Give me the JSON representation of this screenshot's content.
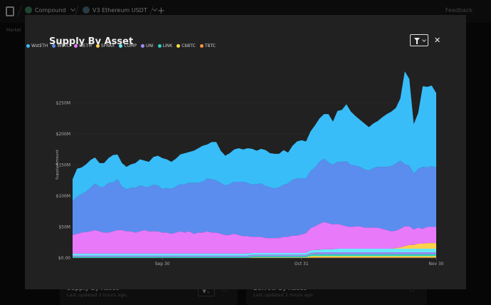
{
  "topbar": {
    "crumbs": [
      "Compound",
      "V3 Ethereum USDT"
    ],
    "add": "+",
    "feedback": "Feedback",
    "subnav": "Market"
  },
  "behind": [
    {
      "title": "Supply By Asset",
      "subtitle": "Last updated 2 hours ago."
    },
    {
      "title": "Borrow By Asset",
      "subtitle": "Last updated 2 hours ago."
    }
  ],
  "modal": {
    "title": "Supply By Asset",
    "close": "✕"
  },
  "chart_data": {
    "type": "area",
    "stacked": true,
    "title": "Supply By Asset",
    "ylabel": "Supply Amount",
    "xlabel": "",
    "ylim": [
      0,
      300000000
    ],
    "yticks": [
      "$0.00",
      "$50M",
      "$100M",
      "$150M",
      "$200M",
      "$250M"
    ],
    "ytick_values": [
      0,
      50000000,
      100000000,
      150000000,
      200000000,
      250000000
    ],
    "xticks": [
      {
        "label": "Sep 30",
        "index": 20
      },
      {
        "label": "Oct 31",
        "index": 51
      },
      {
        "label": "Nov 30",
        "index": 81
      }
    ],
    "x_count": 82,
    "legend": [
      "WstETH",
      "WBTC",
      "WETH",
      "SFRAX",
      "COMP",
      "UNI",
      "LINK",
      "CbBTC",
      "TBTC"
    ],
    "colors": [
      "#38bdf8",
      "#5b8def",
      "#e879f9",
      "#fcd34d",
      "#67e8f9",
      "#a78bfa",
      "#2dd4bf",
      "#fde047",
      "#fb923c"
    ],
    "series": [
      {
        "name": "WstETH",
        "values": [
          35,
          45,
          43,
          44,
          45,
          42,
          38,
          38,
          40,
          45,
          40,
          38,
          36,
          38,
          40,
          42,
          42,
          40,
          45,
          48,
          50,
          46,
          44,
          45,
          48,
          50,
          50,
          52,
          56,
          58,
          55,
          60,
          62,
          52,
          48,
          50,
          52,
          54,
          52,
          56,
          58,
          54,
          56,
          58,
          55,
          56,
          54,
          56,
          50,
          55,
          60,
          62,
          60,
          64,
          68,
          70,
          72,
          78,
          70,
          82,
          84,
          92,
          86,
          80,
          76,
          74,
          70,
          72,
          74,
          80,
          85,
          88,
          90,
          100,
          150,
          140,
          80,
          90,
          130,
          130,
          130,
          120
        ]
      },
      {
        "name": "WBTC",
        "values": [
          55,
          60,
          62,
          65,
          70,
          75,
          72,
          74,
          80,
          78,
          82,
          70,
          68,
          70,
          72,
          74,
          70,
          72,
          75,
          74,
          70,
          72,
          72,
          74,
          76,
          78,
          78,
          82,
          80,
          82,
          85,
          86,
          84,
          82,
          80,
          82,
          84,
          86,
          88,
          86,
          84,
          85,
          86,
          84,
          82,
          80,
          82,
          84,
          86,
          90,
          92,
          90,
          88,
          92,
          95,
          100,
          102,
          98,
          96,
          100,
          102,
          105,
          100,
          98,
          96,
          94,
          92,
          96,
          98,
          100,
          102,
          105,
          108,
          110,
          100,
          98,
          90,
          95,
          100,
          96,
          98,
          96
        ]
      },
      {
        "name": "WETH",
        "values": [
          30,
          32,
          34,
          35,
          36,
          38,
          36,
          34,
          34,
          36,
          38,
          38,
          36,
          36,
          34,
          36,
          38,
          36,
          36,
          36,
          34,
          34,
          32,
          34,
          36,
          34,
          36,
          32,
          34,
          34,
          36,
          34,
          34,
          32,
          30,
          30,
          32,
          30,
          28,
          28,
          26,
          26,
          26,
          24,
          24,
          24,
          24,
          26,
          26,
          28,
          28,
          30,
          32,
          36,
          38,
          42,
          44,
          42,
          40,
          40,
          38,
          36,
          35,
          36,
          36,
          34,
          34,
          34,
          34,
          32,
          30,
          28,
          28,
          30,
          32,
          30,
          25,
          26,
          24,
          26,
          26,
          26
        ]
      },
      {
        "name": "SFRAX",
        "values": [
          0,
          0,
          0,
          0,
          0,
          0,
          0,
          0,
          0,
          0,
          0,
          0,
          0,
          0,
          0,
          0,
          0,
          0,
          0,
          0,
          0,
          0,
          0,
          0,
          0,
          0,
          0,
          0,
          0,
          0,
          0,
          0,
          0,
          0,
          0,
          0,
          0,
          0,
          0,
          0,
          0,
          0,
          0,
          0,
          0,
          0,
          0,
          0,
          0,
          0,
          0,
          0,
          0,
          0,
          0,
          0,
          0,
          0,
          0,
          0,
          0,
          0,
          0,
          0,
          0,
          0,
          0,
          0,
          0,
          0,
          0,
          0,
          1,
          2,
          4,
          6,
          6,
          8,
          8,
          9,
          9,
          9
        ]
      },
      {
        "name": "COMP",
        "values": [
          3,
          3,
          3,
          3,
          3,
          3,
          3,
          3,
          3,
          3,
          3,
          3,
          3,
          3,
          3,
          3,
          3,
          3,
          3,
          3,
          3,
          3,
          3,
          3,
          3,
          3,
          3,
          3,
          3,
          3,
          3,
          3,
          3,
          3,
          3,
          3,
          3,
          3,
          3,
          3,
          3,
          3,
          3,
          3,
          3,
          3,
          3,
          3,
          3,
          3,
          3,
          3,
          3,
          4,
          4,
          4,
          5,
          5,
          5,
          6,
          6,
          6,
          6,
          6,
          6,
          6,
          6,
          6,
          6,
          6,
          6,
          6,
          6,
          6,
          6,
          6,
          6,
          6,
          6,
          6,
          6,
          6
        ]
      },
      {
        "name": "UNI",
        "values": [
          2,
          2,
          2,
          2,
          2,
          2,
          2,
          2,
          2,
          2,
          2,
          2,
          2,
          2,
          2,
          2,
          2,
          2,
          2,
          2,
          2,
          2,
          2,
          2,
          2,
          2,
          2,
          2,
          2,
          2,
          2,
          2,
          2,
          2,
          2,
          2,
          2,
          2,
          2,
          2,
          2,
          2,
          2,
          2,
          2,
          2,
          2,
          2,
          2,
          2,
          2,
          2,
          2,
          2,
          3,
          3,
          3,
          3,
          3,
          3,
          3,
          3,
          3,
          3,
          3,
          3,
          3,
          3,
          3,
          3,
          3,
          3,
          3,
          3,
          3,
          3,
          3,
          3,
          3,
          3,
          3,
          3
        ]
      },
      {
        "name": "LINK",
        "values": [
          2,
          2,
          2,
          2,
          2,
          2,
          2,
          2,
          2,
          2,
          2,
          2,
          2,
          2,
          2,
          2,
          2,
          2,
          2,
          2,
          2,
          2,
          2,
          2,
          2,
          2,
          2,
          2,
          2,
          2,
          2,
          2,
          2,
          2,
          2,
          2,
          2,
          2,
          2,
          2,
          2,
          2,
          2,
          2,
          2,
          2,
          2,
          2,
          2,
          2,
          2,
          2,
          2,
          3,
          3,
          3,
          3,
          3,
          3,
          3,
          3,
          3,
          3,
          3,
          3,
          3,
          3,
          3,
          3,
          3,
          3,
          3,
          3,
          3,
          3,
          3,
          3,
          3,
          3,
          3,
          3,
          3
        ]
      },
      {
        "name": "CbBTC",
        "values": [
          0,
          0,
          0,
          0,
          0,
          0,
          0,
          0,
          0,
          0,
          0,
          0,
          0,
          0,
          0,
          0,
          0,
          0,
          0,
          0,
          0,
          0,
          0,
          0,
          0,
          0,
          0,
          0,
          0,
          0,
          0,
          0,
          0,
          0,
          0,
          0,
          0,
          0,
          0,
          0,
          1,
          1,
          1,
          1,
          1,
          1,
          1,
          1,
          1,
          1,
          1,
          1,
          1,
          2,
          2,
          2,
          2,
          2,
          2,
          2,
          2,
          2,
          2,
          2,
          2,
          2,
          2,
          2,
          2,
          2,
          2,
          2,
          2,
          2,
          2,
          2,
          2,
          2,
          2,
          2,
          2,
          2
        ]
      },
      {
        "name": "TBTC",
        "values": [
          0,
          0,
          0,
          0,
          0,
          0,
          0,
          0,
          0,
          0,
          0,
          0,
          0,
          0,
          0,
          0,
          0,
          0,
          0,
          0,
          0,
          0,
          0,
          0,
          0,
          0,
          0,
          0,
          0,
          0,
          0,
          0,
          0,
          0,
          0,
          0,
          0,
          0,
          0,
          0,
          0,
          0,
          0,
          0,
          0,
          0,
          0,
          0,
          0,
          0,
          0,
          0,
          0,
          1,
          1,
          1,
          1,
          1,
          1,
          1,
          1,
          1,
          1,
          1,
          1,
          1,
          1,
          1,
          1,
          1,
          1,
          1,
          1,
          1,
          1,
          1,
          1,
          1,
          1,
          1,
          1,
          1
        ]
      }
    ],
    "value_unit": "millions USD",
    "grid": true,
    "legend_position": "top-left"
  }
}
